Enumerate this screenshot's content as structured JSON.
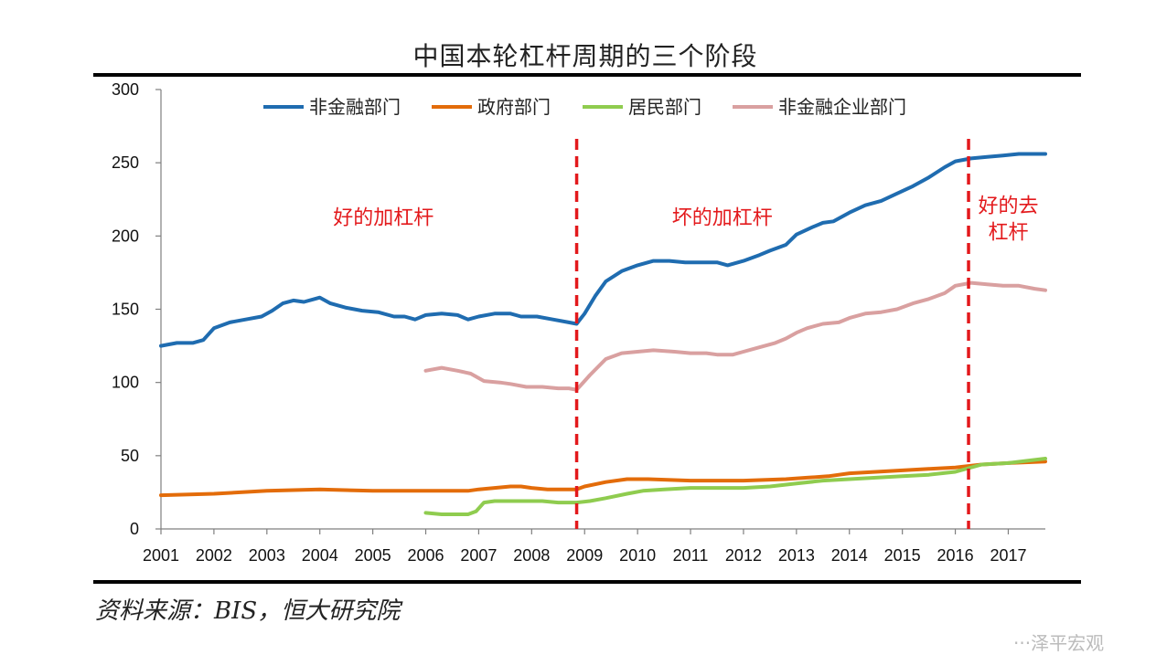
{
  "chart_data": {
    "type": "line",
    "title": "中国本轮杠杆周期的三个阶段",
    "source": "资料来源：BIS，恒大研究院",
    "watermark": "···泽平宏观",
    "xlabel": "",
    "ylabel": "",
    "xlim": [
      2001.0,
      2017.7
    ],
    "ylim": [
      0,
      300
    ],
    "yticks": [
      0,
      50,
      100,
      150,
      200,
      250,
      300
    ],
    "xticks": [
      "2001",
      "2002",
      "2003",
      "2004",
      "2005",
      "2006",
      "2007",
      "2008",
      "2009",
      "2010",
      "2011",
      "2012",
      "2013",
      "2014",
      "2015",
      "2016",
      "2017"
    ],
    "legend_position": "top",
    "series": [
      {
        "name": "非金融部门",
        "color": "#1f6cb0",
        "x": [
          2001.0,
          2001.3,
          2001.6,
          2001.8,
          2002.0,
          2002.3,
          2002.6,
          2002.9,
          2003.1,
          2003.3,
          2003.5,
          2003.7,
          2003.9,
          2004.0,
          2004.2,
          2004.5,
          2004.8,
          2005.1,
          2005.4,
          2005.6,
          2005.8,
          2006.0,
          2006.3,
          2006.6,
          2006.8,
          2007.0,
          2007.3,
          2007.6,
          2007.8,
          2008.1,
          2008.4,
          2008.7,
          2008.85,
          2009.0,
          2009.2,
          2009.4,
          2009.7,
          2010.0,
          2010.3,
          2010.6,
          2010.9,
          2011.2,
          2011.5,
          2011.7,
          2012.0,
          2012.3,
          2012.5,
          2012.8,
          2013.0,
          2013.3,
          2013.5,
          2013.7,
          2014.0,
          2014.3,
          2014.6,
          2014.9,
          2015.2,
          2015.5,
          2015.8,
          2016.0,
          2016.3,
          2016.6,
          2016.9,
          2017.2,
          2017.5,
          2017.7
        ],
        "values": [
          125,
          127,
          127,
          129,
          137,
          141,
          143,
          145,
          149,
          154,
          156,
          155,
          157,
          158,
          154,
          151,
          149,
          148,
          145,
          145,
          143,
          146,
          147,
          146,
          143,
          145,
          147,
          147,
          145,
          145,
          143,
          141,
          140,
          147,
          159,
          169,
          176,
          180,
          183,
          183,
          182,
          182,
          182,
          180,
          183,
          187,
          190,
          194,
          201,
          206,
          209,
          210,
          216,
          221,
          224,
          229,
          234,
          240,
          247,
          251,
          253,
          254,
          255,
          256,
          256,
          256
        ]
      },
      {
        "name": "政府部门",
        "color": "#e36c0a",
        "x": [
          2001.0,
          2002.0,
          2003.0,
          2004.0,
          2005.0,
          2005.5,
          2006.0,
          2006.5,
          2006.8,
          2007.0,
          2007.3,
          2007.6,
          2007.8,
          2008.0,
          2008.3,
          2008.6,
          2008.85,
          2009.0,
          2009.4,
          2009.8,
          2010.2,
          2011.0,
          2012.0,
          2012.8,
          2013.2,
          2013.6,
          2014.0,
          2014.5,
          2015.0,
          2015.5,
          2016.0,
          2016.5,
          2017.0,
          2017.7
        ],
        "values": [
          23,
          24,
          26,
          27,
          26,
          26,
          26,
          26,
          26,
          27,
          28,
          29,
          29,
          28,
          27,
          27,
          27,
          29,
          32,
          34,
          34,
          33,
          33,
          34,
          35,
          36,
          38,
          39,
          40,
          41,
          42,
          44,
          45,
          46
        ]
      },
      {
        "name": "居民部门",
        "color": "#8fcc4f",
        "x": [
          2006.0,
          2006.3,
          2006.6,
          2006.8,
          2006.95,
          2007.1,
          2007.3,
          2007.6,
          2007.9,
          2008.2,
          2008.5,
          2008.85,
          2009.1,
          2009.4,
          2009.8,
          2010.1,
          2010.5,
          2011.0,
          2011.5,
          2012.0,
          2012.5,
          2013.0,
          2013.5,
          2014.0,
          2014.5,
          2015.0,
          2015.5,
          2016.0,
          2016.5,
          2017.0,
          2017.7
        ],
        "values": [
          11,
          10,
          10,
          10,
          12,
          18,
          19,
          19,
          19,
          19,
          18,
          18,
          19,
          21,
          24,
          26,
          27,
          28,
          28,
          28,
          29,
          31,
          33,
          34,
          35,
          36,
          37,
          39,
          44,
          45,
          48
        ]
      },
      {
        "name": "非金融企业部门",
        "color": "#d9a0a0",
        "x": [
          2006.0,
          2006.3,
          2006.6,
          2006.85,
          2007.1,
          2007.4,
          2007.6,
          2007.9,
          2008.2,
          2008.5,
          2008.7,
          2008.85,
          2009.1,
          2009.4,
          2009.7,
          2010.0,
          2010.3,
          2010.7,
          2011.0,
          2011.3,
          2011.5,
          2011.8,
          2012.0,
          2012.3,
          2012.6,
          2012.8,
          2013.0,
          2013.2,
          2013.5,
          2013.8,
          2014.0,
          2014.3,
          2014.6,
          2014.9,
          2015.2,
          2015.5,
          2015.8,
          2016.0,
          2016.3,
          2016.6,
          2016.9,
          2017.2,
          2017.5,
          2017.7
        ],
        "values": [
          108,
          110,
          108,
          106,
          101,
          100,
          99,
          97,
          97,
          96,
          96,
          95,
          105,
          116,
          120,
          121,
          122,
          121,
          120,
          120,
          119,
          119,
          121,
          124,
          127,
          130,
          134,
          137,
          140,
          141,
          144,
          147,
          148,
          150,
          154,
          157,
          161,
          166,
          168,
          167,
          166,
          166,
          164,
          163
        ]
      }
    ],
    "markers": [
      {
        "x": 2008.85,
        "color": "#e3191c"
      },
      {
        "x": 2016.25,
        "color": "#e3191c"
      }
    ],
    "annotations": [
      {
        "id": "good-leverage",
        "text": "好的加杠杆",
        "x": 2005.2,
        "y": 208
      },
      {
        "id": "bad-leverage",
        "text": "坏的加杠杆",
        "x": 2011.6,
        "y": 208
      },
      {
        "id": "good-deleverage-1",
        "text": "好的去",
        "x": 2017.0,
        "y": 216
      },
      {
        "id": "good-deleverage-2",
        "text": "杠杆",
        "x": 2017.0,
        "y": 198
      }
    ]
  }
}
